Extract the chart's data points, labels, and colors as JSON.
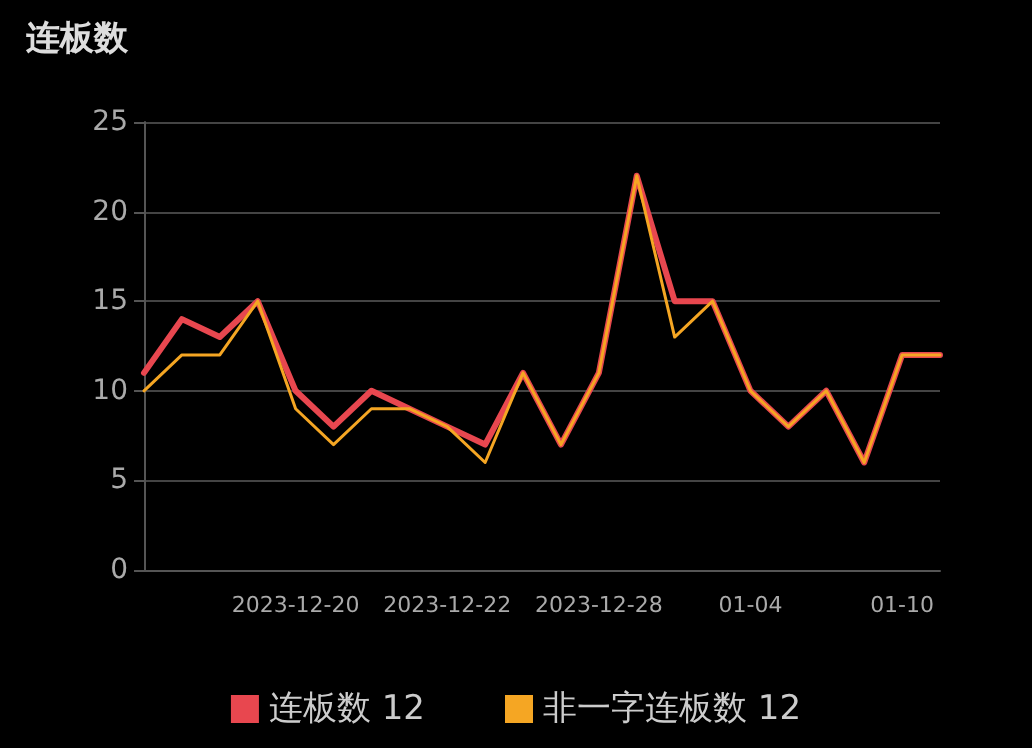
{
  "chart_data": {
    "type": "line",
    "title": "连板数",
    "categories": [
      null,
      null,
      null,
      null,
      "2023-12-20",
      null,
      null,
      null,
      "2023-12-22",
      null,
      null,
      null,
      "2023-12-28",
      null,
      null,
      null,
      "01-04",
      null,
      null,
      null,
      "01-10",
      null
    ],
    "series": [
      {
        "name": "连板数 12",
        "color": "#e8474f",
        "values": [
          11,
          14,
          13,
          15,
          10,
          8,
          10,
          9,
          8,
          7,
          11,
          7,
          11,
          22,
          15,
          15,
          10,
          8,
          10,
          6,
          12,
          12
        ]
      },
      {
        "name": "非一字连板数 12",
        "color": "#f5a623",
        "values": [
          10,
          12,
          12,
          15,
          9,
          7,
          9,
          9,
          8,
          6,
          11,
          7,
          11,
          22,
          13,
          15,
          10,
          8,
          10,
          6,
          12,
          12
        ]
      }
    ],
    "ylim": [
      0,
      25
    ],
    "yticks": [
      0,
      5,
      10,
      15,
      20,
      25
    ],
    "grid": "y",
    "legend": "bottom",
    "marker": "none",
    "line_style": "solid"
  }
}
